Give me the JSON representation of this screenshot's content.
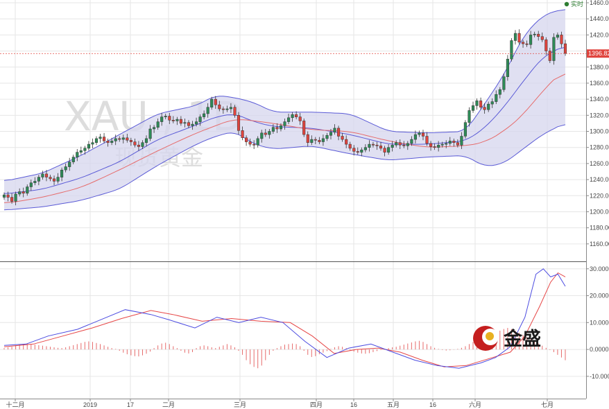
{
  "chart_data": [
    {
      "type": "candlestick",
      "symbol_watermark": "XAU , 1D",
      "name_watermark": "现货黄金",
      "legend": [
        {
          "label": "实时",
          "color": "#2e7d32"
        }
      ],
      "current_price": "1396.82",
      "ylim": [
        1140,
        1460
      ],
      "y_ticks": [
        "1160.00",
        "1180.00",
        "1200.00",
        "1220.00",
        "1240.00",
        "1260.00",
        "1280.00",
        "1300.00",
        "1320.00",
        "1340.00",
        "1360.00",
        "1380.00",
        "1400.00",
        "1420.00",
        "1440.00",
        "1460.00"
      ],
      "x_ticks": [
        "十二月",
        "2019",
        "17",
        "二月",
        "三月",
        "四月",
        "16",
        "五月",
        "16",
        "六月",
        "七月"
      ],
      "grid": true,
      "colors": {
        "up": "#2e8b57",
        "down": "#e0443e",
        "bands_fill": "#d6d6ee",
        "bands_line": "#5a5ad6",
        "sma20": "#5a5ad6",
        "ma": "#e66b6b",
        "price_line": "#e0443e"
      },
      "close": [
        1221,
        1218,
        1213,
        1222,
        1225,
        1223,
        1231,
        1236,
        1238,
        1243,
        1247,
        1243,
        1241,
        1238,
        1243,
        1252,
        1256,
        1262,
        1268,
        1274,
        1276,
        1279,
        1284,
        1286,
        1291,
        1293,
        1288,
        1286,
        1288,
        1291,
        1290,
        1292,
        1289,
        1287,
        1283,
        1281,
        1286,
        1291,
        1303,
        1305,
        1312,
        1318,
        1319,
        1314,
        1313,
        1315,
        1310,
        1311,
        1307,
        1309,
        1312,
        1318,
        1322,
        1330,
        1340,
        1333,
        1328,
        1327,
        1328,
        1330,
        1320,
        1301,
        1292,
        1287,
        1284,
        1283,
        1291,
        1298,
        1296,
        1300,
        1305,
        1303,
        1307,
        1312,
        1317,
        1321,
        1318,
        1313,
        1296,
        1286,
        1290,
        1289,
        1287,
        1291,
        1295,
        1299,
        1304,
        1294,
        1290,
        1284,
        1279,
        1275,
        1274,
        1277,
        1280,
        1284,
        1283,
        1282,
        1279,
        1274,
        1280,
        1283,
        1286,
        1283,
        1282,
        1285,
        1290,
        1296,
        1298,
        1294,
        1285,
        1281,
        1280,
        1283,
        1284,
        1285,
        1288,
        1286,
        1283,
        1294,
        1311,
        1326,
        1332,
        1338,
        1330,
        1327,
        1334,
        1337,
        1346,
        1352,
        1368,
        1390,
        1413,
        1422,
        1411,
        1409,
        1408,
        1420,
        1421,
        1418,
        1414,
        1400,
        1388,
        1417,
        1420,
        1409,
        1397
      ],
      "bollinger": [
        {
          "x": 0,
          "upper": 1238,
          "mid": 1222,
          "lower": 1202
        },
        {
          "x": 10,
          "upper": 1248,
          "mid": 1228,
          "lower": 1206
        },
        {
          "x": 20,
          "upper": 1270,
          "mid": 1242,
          "lower": 1214
        },
        {
          "x": 30,
          "upper": 1296,
          "mid": 1262,
          "lower": 1228
        },
        {
          "x": 40,
          "upper": 1322,
          "mid": 1290,
          "lower": 1258
        },
        {
          "x": 50,
          "upper": 1332,
          "mid": 1308,
          "lower": 1284
        },
        {
          "x": 55,
          "upper": 1345,
          "mid": 1318,
          "lower": 1294
        },
        {
          "x": 60,
          "upper": 1342,
          "mid": 1322,
          "lower": 1300
        },
        {
          "x": 65,
          "upper": 1336,
          "mid": 1312,
          "lower": 1284
        },
        {
          "x": 70,
          "upper": 1324,
          "mid": 1306,
          "lower": 1278
        },
        {
          "x": 80,
          "upper": 1324,
          "mid": 1304,
          "lower": 1282
        },
        {
          "x": 90,
          "upper": 1322,
          "mid": 1296,
          "lower": 1272
        },
        {
          "x": 100,
          "upper": 1300,
          "mid": 1284,
          "lower": 1264
        },
        {
          "x": 110,
          "upper": 1298,
          "mid": 1284,
          "lower": 1268
        },
        {
          "x": 120,
          "upper": 1300,
          "mid": 1288,
          "lower": 1270
        },
        {
          "x": 125,
          "upper": 1334,
          "mid": 1304,
          "lower": 1256
        },
        {
          "x": 130,
          "upper": 1370,
          "mid": 1330,
          "lower": 1260
        },
        {
          "x": 135,
          "upper": 1418,
          "mid": 1362,
          "lower": 1278
        },
        {
          "x": 140,
          "upper": 1444,
          "mid": 1392,
          "lower": 1296
        },
        {
          "x": 145,
          "upper": 1452,
          "mid": 1405,
          "lower": 1308
        },
        {
          "x": 148,
          "upper": 1452,
          "mid": 1410,
          "lower": 1318
        }
      ],
      "ma_long": [
        {
          "x": 0,
          "y": 1210
        },
        {
          "x": 10,
          "y": 1218
        },
        {
          "x": 20,
          "y": 1230
        },
        {
          "x": 30,
          "y": 1252
        },
        {
          "x": 40,
          "y": 1276
        },
        {
          "x": 50,
          "y": 1298
        },
        {
          "x": 60,
          "y": 1316
        },
        {
          "x": 70,
          "y": 1310
        },
        {
          "x": 80,
          "y": 1302
        },
        {
          "x": 90,
          "y": 1300
        },
        {
          "x": 100,
          "y": 1288
        },
        {
          "x": 110,
          "y": 1280
        },
        {
          "x": 120,
          "y": 1282
        },
        {
          "x": 125,
          "y": 1286
        },
        {
          "x": 130,
          "y": 1300
        },
        {
          "x": 135,
          "y": 1320
        },
        {
          "x": 140,
          "y": 1350
        },
        {
          "x": 145,
          "y": 1374
        },
        {
          "x": 148,
          "y": 1385
        }
      ]
    },
    {
      "type": "macd",
      "ylim": [
        -17,
        32
      ],
      "y_ticks": [
        "30.0000",
        "20.0000",
        "10.0000",
        "0.0000",
        "-10.0000"
      ],
      "colors": {
        "macd": "#4a4ae0",
        "signal": "#e64646",
        "hist_pos": "#e66b6b",
        "hist_neg": "#e66b6b"
      },
      "macd": [
        {
          "x": 0,
          "y": 1.5
        },
        {
          "x": 6,
          "y": 2.0
        },
        {
          "x": 12,
          "y": 5.0
        },
        {
          "x": 20,
          "y": 7.5
        },
        {
          "x": 28,
          "y": 12.0
        },
        {
          "x": 33,
          "y": 14.8
        },
        {
          "x": 40,
          "y": 13.0
        },
        {
          "x": 45,
          "y": 11.0
        },
        {
          "x": 52,
          "y": 8.0
        },
        {
          "x": 58,
          "y": 12.0
        },
        {
          "x": 64,
          "y": 10.0
        },
        {
          "x": 70,
          "y": 12.0
        },
        {
          "x": 76,
          "y": 10.0
        },
        {
          "x": 82,
          "y": 3.0
        },
        {
          "x": 88,
          "y": -3.0
        },
        {
          "x": 94,
          "y": 0.5
        },
        {
          "x": 100,
          "y": 2.0
        },
        {
          "x": 106,
          "y": -1.0
        },
        {
          "x": 112,
          "y": -4.0
        },
        {
          "x": 118,
          "y": -6.0
        },
        {
          "x": 124,
          "y": -7.0
        },
        {
          "x": 130,
          "y": -5.0
        },
        {
          "x": 134,
          "y": -3.0
        },
        {
          "x": 138,
          "y": 1.0
        },
        {
          "x": 142,
          "y": 12.0
        },
        {
          "x": 145,
          "y": 28.0
        },
        {
          "x": 147,
          "y": 30.0
        },
        {
          "x": 149,
          "y": 27.0
        },
        {
          "x": 151,
          "y": 28.0
        },
        {
          "x": 153,
          "y": 23.5
        }
      ],
      "signal": [
        {
          "x": 0,
          "y": 1.0
        },
        {
          "x": 8,
          "y": 2.0
        },
        {
          "x": 16,
          "y": 5.0
        },
        {
          "x": 24,
          "y": 8.0
        },
        {
          "x": 32,
          "y": 11.5
        },
        {
          "x": 40,
          "y": 14.5
        },
        {
          "x": 46,
          "y": 13.0
        },
        {
          "x": 54,
          "y": 10.5
        },
        {
          "x": 62,
          "y": 11.5
        },
        {
          "x": 70,
          "y": 10.5
        },
        {
          "x": 78,
          "y": 10.0
        },
        {
          "x": 84,
          "y": 5.0
        },
        {
          "x": 90,
          "y": -1.5
        },
        {
          "x": 96,
          "y": 0.0
        },
        {
          "x": 102,
          "y": 0.5
        },
        {
          "x": 108,
          "y": -1.0
        },
        {
          "x": 114,
          "y": -4.0
        },
        {
          "x": 120,
          "y": -6.5
        },
        {
          "x": 126,
          "y": -6.0
        },
        {
          "x": 132,
          "y": -3.5
        },
        {
          "x": 138,
          "y": -1.0
        },
        {
          "x": 142,
          "y": 5.0
        },
        {
          "x": 146,
          "y": 16.0
        },
        {
          "x": 149,
          "y": 25.0
        },
        {
          "x": 151,
          "y": 28.5
        },
        {
          "x": 153,
          "y": 27.0
        }
      ],
      "histogram": [
        0.5,
        0.8,
        1.0,
        1.5,
        1.8,
        2.0,
        2.2,
        2.0,
        1.8,
        1.6,
        1.4,
        1.2,
        1.0,
        0.8,
        0.6,
        0.5,
        0.8,
        1.2,
        1.6,
        2.0,
        2.4,
        2.8,
        3.0,
        2.8,
        2.4,
        2.0,
        1.5,
        1.0,
        0.5,
        0.2,
        -0.5,
        -1.2,
        -1.8,
        -2.2,
        -2.5,
        -2.6,
        -2.2,
        -1.6,
        -0.8,
        0.5,
        1.5,
        2.2,
        2.5,
        2.0,
        1.2,
        0.5,
        -0.5,
        -1.2,
        -1.5,
        -1.0,
        0.5,
        1.2,
        1.5,
        1.2,
        0.8,
        0.5,
        1.0,
        1.5,
        2.0,
        1.5,
        0.8,
        -0.5,
        -2.0,
        -4.0,
        -5.5,
        -6.5,
        -7.0,
        -6.0,
        -4.0,
        -2.0,
        -0.5,
        0.5,
        1.2,
        1.8,
        2.0,
        2.2,
        2.0,
        1.2,
        -0.5,
        -2.0,
        -2.8,
        -2.5,
        -1.8,
        -1.2,
        -0.6,
        0.2,
        0.8,
        1.2,
        1.0,
        0.5,
        -0.3,
        -0.8,
        -1.2,
        -1.5,
        -1.6,
        -1.4,
        -1.0,
        -0.6,
        -0.2,
        0.2,
        0.5,
        0.8,
        1.0,
        1.4,
        1.8,
        2.2,
        2.6,
        3.0,
        3.2,
        2.8,
        2.0,
        1.2,
        0.6,
        0.2,
        -0.2,
        -0.4,
        -0.3,
        -0.1,
        0.2,
        0.6,
        1.2,
        2.0,
        2.8,
        3.4,
        3.8,
        4.2,
        4.8,
        5.4,
        6.2,
        7.0,
        7.6,
        8.0,
        7.6,
        7.0,
        6.2,
        5.4,
        4.6,
        3.8,
        3.0,
        2.2,
        1.4,
        0.6,
        -0.2,
        -1.0,
        -2.0,
        -3.0,
        -4.0
      ],
      "x_ticks": [
        "十二月",
        "2019",
        "17",
        "二月",
        "三月",
        "四月",
        "16",
        "五月",
        "16",
        "六月",
        "七月"
      ]
    }
  ],
  "brand": {
    "text": "金盛",
    "logo": "jinsheng-logo"
  }
}
